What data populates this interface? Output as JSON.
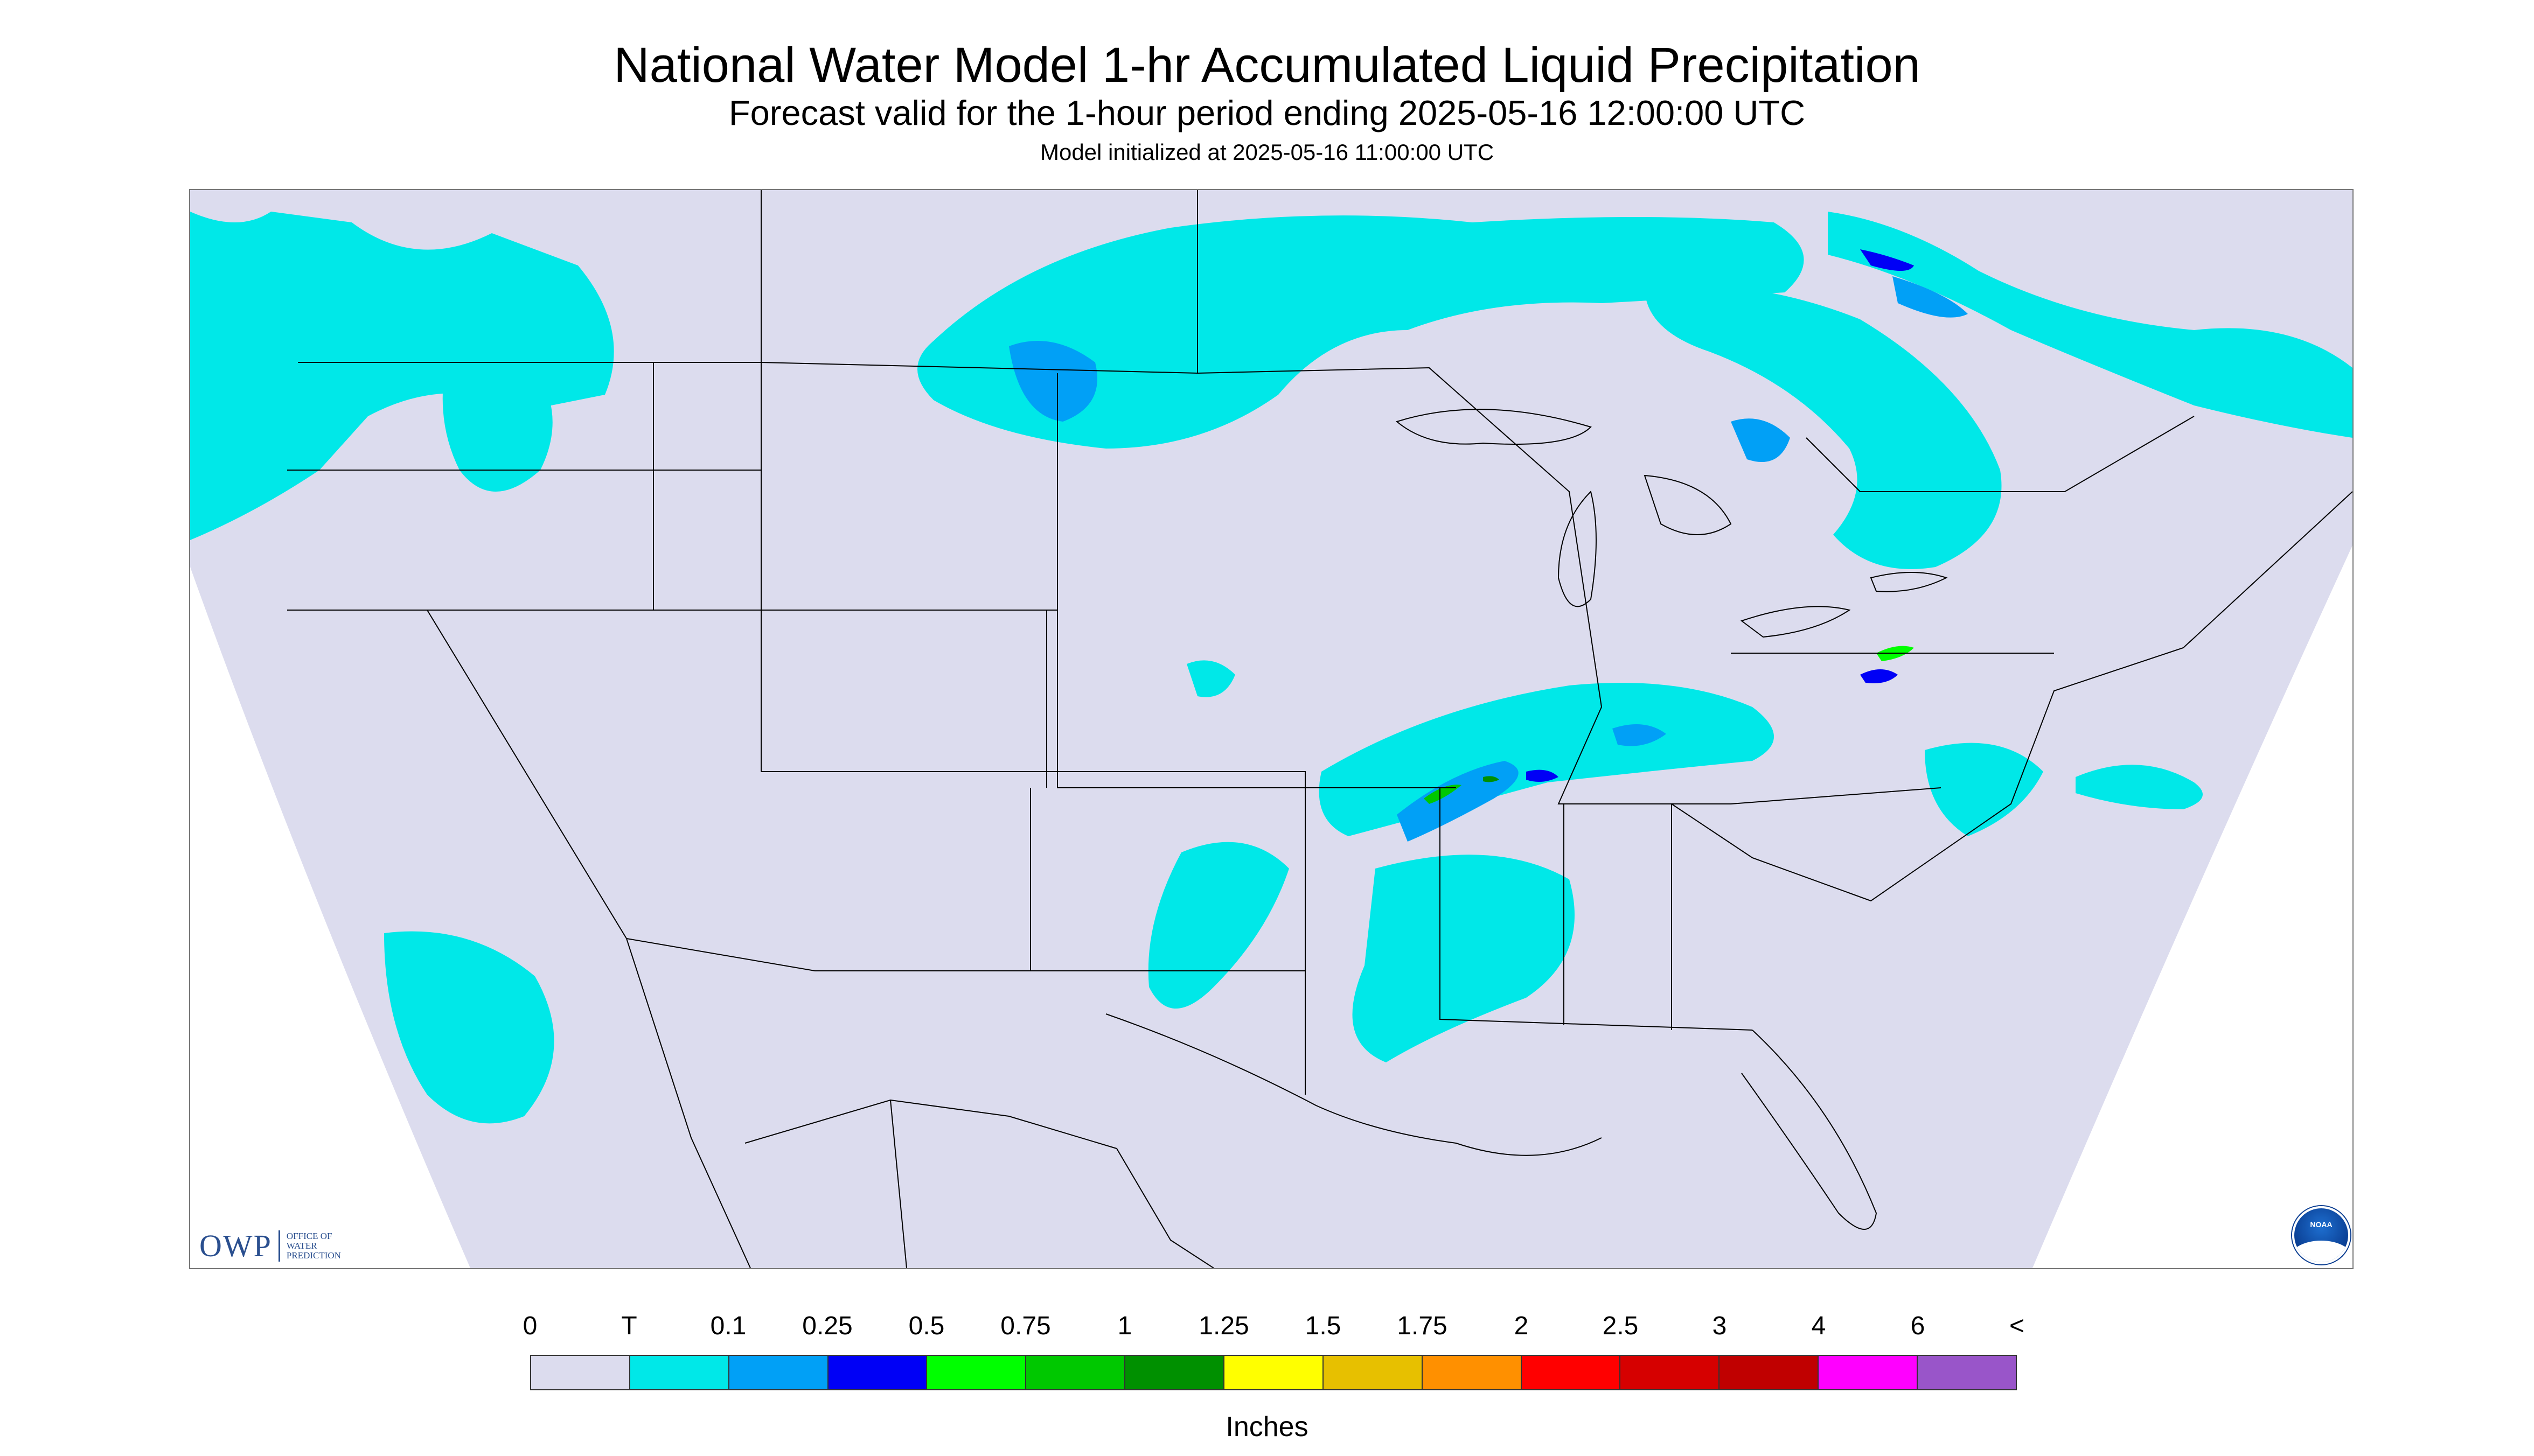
{
  "title": "National Water Model 1-hr Accumulated Liquid Precipitation",
  "subtitle": "Forecast valid for the 1-hour period ending 2025-05-16 12:00:00 UTC",
  "init_text": "Model initialized at 2025-05-16 11:00:00 UTC",
  "logos": {
    "owp_text": "OWP",
    "owp_subtitle": [
      "OFFICE OF",
      "WATER",
      "PREDICTION"
    ],
    "noaa_text": "NOAA"
  },
  "legend": {
    "units": "Inches",
    "labels": [
      "0",
      "T",
      "0.1",
      "0.25",
      "0.5",
      "0.75",
      "1",
      "1.25",
      "1.5",
      "1.75",
      "2",
      "2.5",
      "3",
      "4",
      "6",
      "<"
    ],
    "colors": [
      "#dcdcee",
      "#00e8e8",
      "#01a0f6",
      "#0000f6",
      "#00ff00",
      "#00c800",
      "#009000",
      "#ffff00",
      "#e7c000",
      "#ff9000",
      "#ff0000",
      "#d60000",
      "#c00000",
      "#ff00ff",
      "#9955c9"
    ]
  },
  "map": {
    "no_data_color": "#ffffff",
    "background_color": "#dcdcee",
    "boundary_color": "#000000"
  }
}
